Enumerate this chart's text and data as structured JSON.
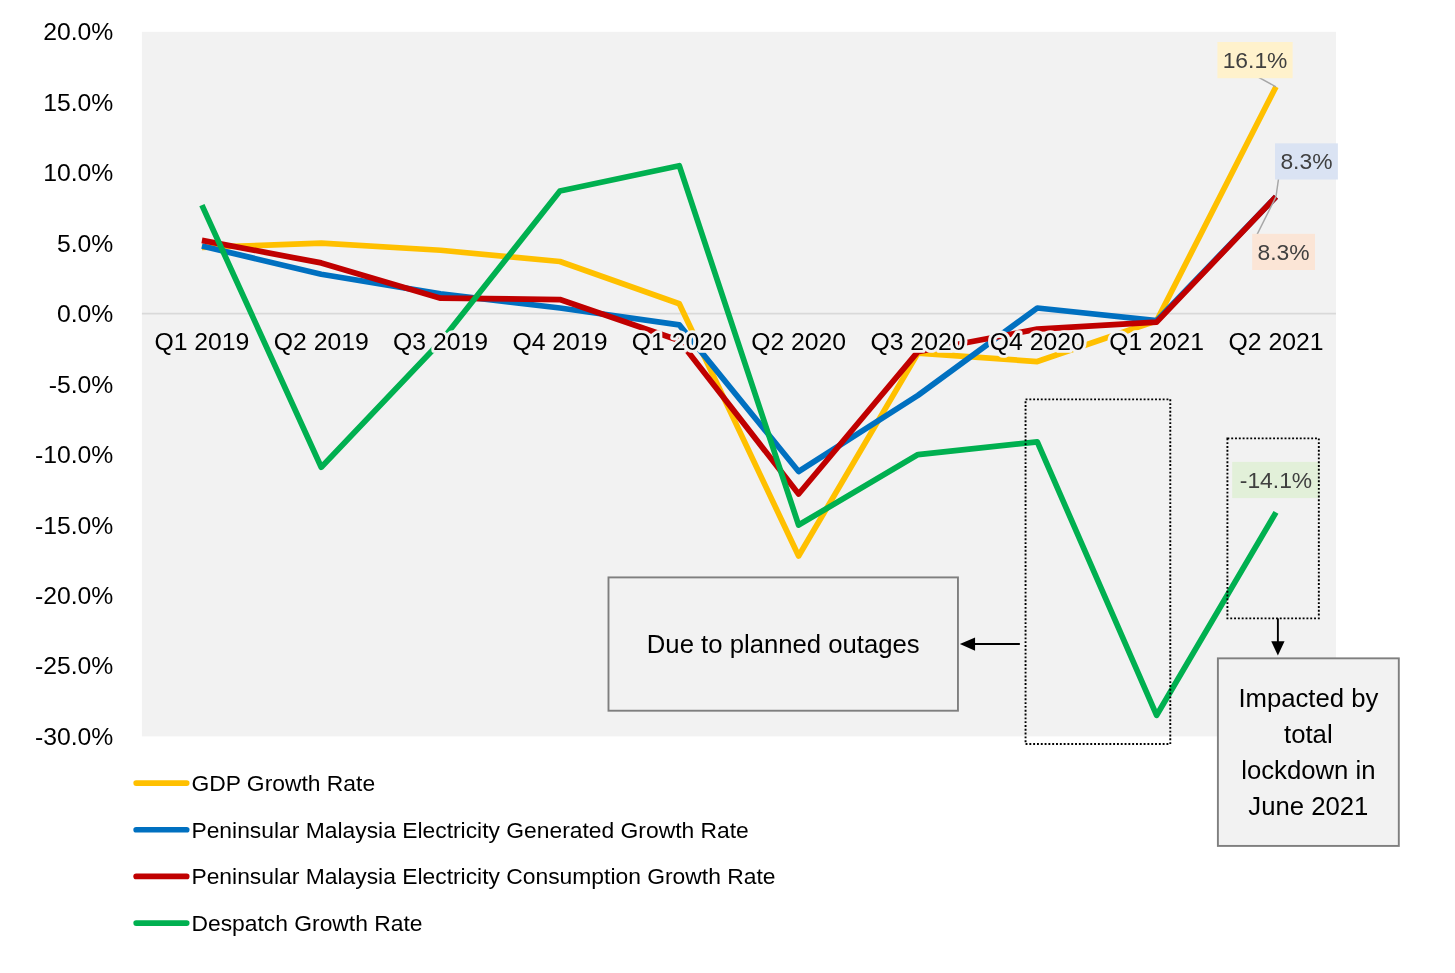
{
  "chart_data": {
    "type": "line",
    "categories": [
      "Q1 2019",
      "Q2 2019",
      "Q3 2019",
      "Q4 2019",
      "Q1 2020",
      "Q2 2020",
      "Q3 2020",
      "Q4 2020",
      "Q1 2021",
      "Q2 2021"
    ],
    "ylim": [
      -30,
      20
    ],
    "yticks": [
      {
        "value": -30,
        "label": "-30.0%"
      },
      {
        "value": -25,
        "label": "-25.0%"
      },
      {
        "value": -20,
        "label": "-20.0%"
      },
      {
        "value": -15,
        "label": "-15.0%"
      },
      {
        "value": -10,
        "label": "-10.0%"
      },
      {
        "value": -5,
        "label": "-5.0%"
      },
      {
        "value": 0,
        "label": "0.0%"
      },
      {
        "value": 5,
        "label": "5.0%"
      },
      {
        "value": 10,
        "label": "10.0%"
      },
      {
        "value": 15,
        "label": "15.0%"
      },
      {
        "value": 20,
        "label": "20.0%"
      }
    ],
    "series": [
      {
        "name": "GDP Growth Rate",
        "color": "#ffc000",
        "values": [
          4.7,
          5.0,
          4.5,
          3.7,
          0.7,
          -17.2,
          -2.8,
          -3.4,
          -0.5,
          16.1
        ],
        "value_labels": [
          null,
          null,
          null,
          null,
          null,
          null,
          null,
          null,
          null,
          "16.1%"
        ]
      },
      {
        "name": "Peninsular Malaysia Electricity Generated Growth Rate",
        "color": "#0070c0",
        "values": [
          4.8,
          2.8,
          1.4,
          0.4,
          -0.8,
          -11.2,
          -5.8,
          0.4,
          -0.5,
          8.3
        ],
        "value_labels": [
          null,
          null,
          null,
          null,
          null,
          null,
          null,
          null,
          null,
          "8.3%"
        ]
      },
      {
        "name": "Peninsular Malaysia Electricity Consumption Growth Rate",
        "color": "#c00000",
        "values": [
          5.2,
          3.6,
          1.1,
          1.0,
          -1.9,
          -12.8,
          -2.7,
          -1.1,
          -0.6,
          8.3
        ],
        "value_labels": [
          null,
          null,
          null,
          null,
          null,
          null,
          null,
          null,
          null,
          "8.3%"
        ]
      },
      {
        "name": "Despatch Growth Rate",
        "color": "#00b050",
        "values": [
          7.7,
          -10.9,
          -2.0,
          8.7,
          10.5,
          -15.0,
          -10.0,
          -9.1,
          -28.5,
          -14.1
        ],
        "value_labels": [
          null,
          null,
          null,
          null,
          null,
          null,
          null,
          null,
          null,
          "-14.1%"
        ]
      }
    ],
    "annotations": [
      "Due to planned outages",
      "Impacted by total lockdown in June 2021"
    ],
    "grid": false,
    "legend": "bottom left",
    "marker": "none",
    "line_style": "solid"
  }
}
